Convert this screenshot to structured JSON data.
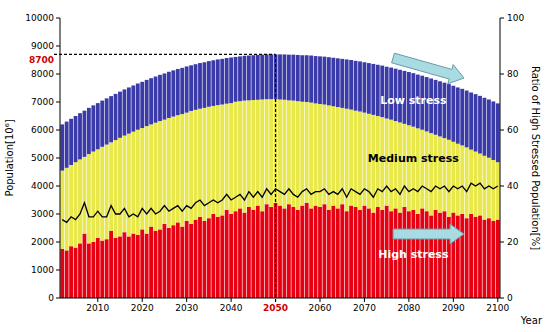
{
  "chart_data": {
    "type": "bar",
    "stacked": true,
    "x_label": "Year",
    "y_label": "Population[10⁶]",
    "y2_label": "Ratio of High Stressed Population[%]",
    "x": [
      2002,
      2003,
      2004,
      2005,
      2006,
      2007,
      2008,
      2009,
      2010,
      2011,
      2012,
      2013,
      2014,
      2015,
      2016,
      2017,
      2018,
      2019,
      2020,
      2021,
      2022,
      2023,
      2024,
      2025,
      2026,
      2027,
      2028,
      2029,
      2030,
      2031,
      2032,
      2033,
      2034,
      2035,
      2036,
      2037,
      2038,
      2039,
      2040,
      2041,
      2042,
      2043,
      2044,
      2045,
      2046,
      2047,
      2048,
      2049,
      2050,
      2051,
      2052,
      2053,
      2054,
      2055,
      2056,
      2057,
      2058,
      2059,
      2060,
      2061,
      2062,
      2063,
      2064,
      2065,
      2066,
      2067,
      2068,
      2069,
      2070,
      2071,
      2072,
      2073,
      2074,
      2075,
      2076,
      2077,
      2078,
      2079,
      2080,
      2081,
      2082,
      2083,
      2084,
      2085,
      2086,
      2087,
      2088,
      2089,
      2090,
      2091,
      2092,
      2093,
      2094,
      2095,
      2096,
      2097,
      2098,
      2099,
      2100
    ],
    "xlim": [
      2001.5,
      2100.5
    ],
    "xticks": [
      2010,
      2020,
      2030,
      2040,
      2060,
      2070,
      2080,
      2090,
      2100
    ],
    "ylim": [
      0,
      10000
    ],
    "yticks": [
      0,
      1000,
      2000,
      3000,
      4000,
      5000,
      6000,
      7000,
      8000,
      9000,
      10000
    ],
    "y2lim": [
      0,
      100
    ],
    "y2ticks": [
      0,
      20,
      40,
      60,
      80,
      100
    ],
    "series": [
      {
        "name": "High stress",
        "color": "#e60012",
        "values": [
          1750,
          1700,
          1850,
          1800,
          1950,
          2300,
          1950,
          2000,
          2150,
          2050,
          2100,
          2400,
          2150,
          2200,
          2350,
          2200,
          2300,
          2250,
          2450,
          2300,
          2550,
          2400,
          2450,
          2650,
          2500,
          2600,
          2700,
          2550,
          2750,
          2650,
          2800,
          2900,
          2750,
          2850,
          3000,
          2900,
          2950,
          3150,
          3000,
          3100,
          3200,
          3050,
          3250,
          3150,
          3300,
          3100,
          3350,
          3250,
          3400,
          3300,
          3200,
          3350,
          3250,
          3150,
          3300,
          3400,
          3200,
          3300,
          3250,
          3350,
          3150,
          3300,
          3200,
          3350,
          3100,
          3300,
          3250,
          3150,
          3300,
          3200,
          3050,
          3250,
          3150,
          3300,
          3100,
          3200,
          3050,
          3250,
          3100,
          3150,
          3000,
          3200,
          3100,
          2950,
          3150,
          3050,
          3100,
          2900,
          3050,
          2950,
          3000,
          2850,
          3000,
          2900,
          2950,
          2800,
          2850,
          2750,
          2800
        ]
      },
      {
        "name": "Medium stress",
        "color": "#e8e84a",
        "values": [
          2800,
          2950,
          2900,
          3050,
          3000,
          2740,
          3190,
          3230,
          3160,
          3350,
          3380,
          3160,
          3490,
          3520,
          3450,
          3670,
          3640,
          3760,
          3620,
          3840,
          3650,
          3860,
          3870,
          3720,
          3930,
          3880,
          3830,
          4020,
          3870,
          4030,
          3920,
          3860,
          4040,
          3980,
          3860,
          3990,
          3960,
          3790,
          3960,
          3910,
          3830,
          4000,
          3810,
          3920,
          3780,
          3990,
          3750,
          3850,
          3700,
          3790,
          3880,
          3710,
          3800,
          3880,
          3710,
          3600,
          3780,
          3650,
          3680,
          3560,
          3730,
          3550,
          3620,
          3440,
          3660,
          3430,
          3440,
          3510,
          3320,
          3380,
          3490,
          3250,
          3310,
          3110,
          3270,
          3120,
          3220,
          2970,
          3070,
          2970,
          3060,
          2810,
          2850,
          2940,
          2680,
          2720,
          2610,
          2750,
          2530,
          2560,
          2450,
          2530,
          2300,
          2330,
          2210,
          2280,
          2160,
          2180,
          2050
        ]
      },
      {
        "name": "Low stress",
        "color": "#3a3aa8",
        "values": [
          1650,
          1650,
          1650,
          1650,
          1650,
          1650,
          1650,
          1650,
          1650,
          1650,
          1650,
          1650,
          1650,
          1650,
          1650,
          1650,
          1650,
          1650,
          1650,
          1650,
          1650,
          1650,
          1650,
          1650,
          1650,
          1650,
          1650,
          1650,
          1650,
          1630,
          1630,
          1630,
          1630,
          1630,
          1630,
          1630,
          1630,
          1630,
          1630,
          1600,
          1600,
          1600,
          1600,
          1600,
          1600,
          1600,
          1600,
          1600,
          1600,
          1610,
          1620,
          1630,
          1640,
          1650,
          1660,
          1670,
          1680,
          1690,
          1700,
          1710,
          1720,
          1730,
          1740,
          1750,
          1760,
          1770,
          1780,
          1790,
          1800,
          1810,
          1820,
          1830,
          1840,
          1850,
          1860,
          1870,
          1880,
          1890,
          1900,
          1910,
          1920,
          1930,
          1940,
          1950,
          1960,
          1970,
          1980,
          1990,
          2000,
          2010,
          2020,
          2030,
          2040,
          2050,
          2060,
          2070,
          2080,
          2090,
          2100
        ]
      },
      {
        "type": "line",
        "axis": "y2",
        "color": "#000000",
        "values": [
          28,
          27,
          29,
          28,
          30,
          34,
          29,
          29,
          31,
          29,
          29,
          33,
          30,
          30,
          32,
          29,
          30,
          29,
          32,
          30,
          32,
          30,
          31,
          33,
          31,
          32,
          33,
          31,
          33,
          32,
          34,
          35,
          33,
          34,
          35,
          34,
          35,
          37,
          35,
          36,
          37,
          35,
          38,
          36,
          38,
          36,
          39,
          37,
          39,
          38,
          37,
          39,
          37,
          36,
          38,
          39,
          37,
          38,
          38,
          39,
          37,
          38,
          37,
          39,
          36,
          39,
          38,
          37,
          39,
          38,
          36,
          39,
          38,
          40,
          38,
          39,
          37,
          40,
          38,
          39,
          38,
          40,
          39,
          38,
          40,
          39,
          40,
          38,
          40,
          39,
          40,
          38,
          41,
          40,
          41,
          39,
          40,
          39,
          40
        ]
      }
    ],
    "annotations": [
      {
        "text": "8700",
        "y": 8700
      },
      {
        "text": "2050",
        "x": 2050
      }
    ]
  }
}
